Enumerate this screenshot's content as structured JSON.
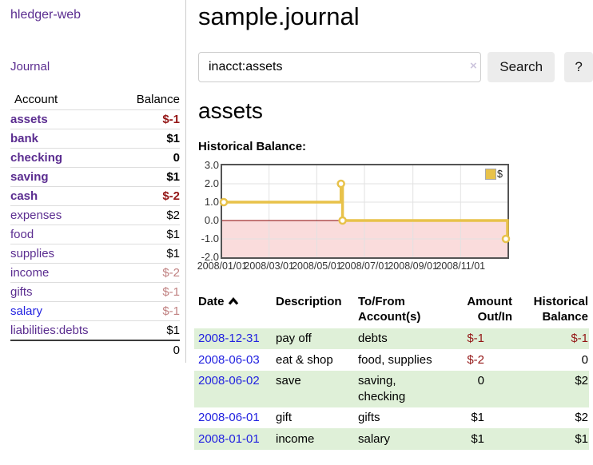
{
  "app": {
    "brand": "hledger-web",
    "nav_journal": "Journal"
  },
  "sidebar": {
    "header": {
      "account": "Account",
      "balance": "Balance"
    },
    "accounts": [
      {
        "name": "assets",
        "balance": "$-1",
        "level": 1,
        "emphasis": true,
        "visited": true
      },
      {
        "name": "bank",
        "balance": "$1",
        "level": 2,
        "emphasis": true,
        "visited": true
      },
      {
        "name": "checking",
        "balance": "0",
        "level": 3,
        "emphasis": true,
        "visited": true
      },
      {
        "name": "saving",
        "balance": "$1",
        "level": 3,
        "emphasis": true,
        "visited": true
      },
      {
        "name": "cash",
        "balance": "$-2",
        "level": 2,
        "emphasis": true,
        "visited": true
      },
      {
        "name": "expenses",
        "balance": "$2",
        "level": 1,
        "emphasis": false,
        "visited": true
      },
      {
        "name": "food",
        "balance": "$1",
        "level": 2,
        "emphasis": false,
        "visited": true
      },
      {
        "name": "supplies",
        "balance": "$1",
        "level": 2,
        "emphasis": false,
        "visited": true
      },
      {
        "name": "income",
        "balance": "$-2",
        "level": 1,
        "emphasis": false,
        "visited": true
      },
      {
        "name": "gifts",
        "balance": "$-1",
        "level": 2,
        "emphasis": false,
        "visited": true
      },
      {
        "name": "salary",
        "balance": "$-1",
        "level": 2,
        "emphasis": false,
        "visited": false
      },
      {
        "name": "liabilities:debts",
        "balance": "$1",
        "level": 1,
        "emphasis": false,
        "visited": true
      }
    ],
    "total": "0"
  },
  "main": {
    "title": "sample.journal",
    "search": {
      "value": "inacct:assets",
      "clear_icon": "×",
      "button_label": "Search",
      "help_label": "?"
    },
    "account_heading": "assets",
    "chart_label": "Historical Balance:"
  },
  "chart_data": {
    "type": "line",
    "style": "step",
    "title": "Historical Balance",
    "legend_label": "$",
    "legend_position": "top-right",
    "color": "#e8c24a",
    "ylim": [
      -2,
      3
    ],
    "yticks": [
      {
        "label": "3.0",
        "value": 3
      },
      {
        "label": "2.0",
        "value": 2
      },
      {
        "label": "1.0",
        "value": 1
      },
      {
        "label": "0.0",
        "value": 0
      },
      {
        "label": "-1.0",
        "value": -1
      },
      {
        "label": "-2.0",
        "value": -2
      }
    ],
    "xticks": [
      {
        "label": "2008/01/01",
        "day": 0
      },
      {
        "label": "2008/03/01",
        "day": 60
      },
      {
        "label": "2008/05/01",
        "day": 121
      },
      {
        "label": "2008/07/01",
        "day": 182
      },
      {
        "label": "2008/09/01",
        "day": 244
      },
      {
        "label": "2008/11/01",
        "day": 305
      }
    ],
    "x_total_days": 365,
    "points": [
      {
        "date": "2008-01-01",
        "day": 0,
        "value": 1
      },
      {
        "date": "2008-06-01",
        "day": 152,
        "value": 2
      },
      {
        "date": "2008-06-03",
        "day": 154,
        "value": 0
      },
      {
        "date": "2008-12-31",
        "day": 365,
        "value": -1
      }
    ],
    "grid": true,
    "grid_color": "#e2e2e2",
    "negative_region_color": "#fadcdc",
    "zero_line_color": "#8b0000"
  },
  "register": {
    "columns": [
      "Date",
      "Description",
      "To/From Account(s)",
      "Amount Out/In",
      "Historical Balance"
    ],
    "rows": [
      {
        "date": "2008-12-31",
        "description": "pay off",
        "accounts": "debts",
        "amount": "$-1",
        "balance": "$-1"
      },
      {
        "date": "2008-06-03",
        "description": "eat & shop",
        "accounts": "food, supplies",
        "amount": "$-2",
        "balance": "0"
      },
      {
        "date": "2008-06-02",
        "description": "save",
        "accounts": "saving, checking",
        "amount": "0",
        "balance": "$2"
      },
      {
        "date": "2008-06-01",
        "description": "gift",
        "accounts": "gifts",
        "amount": "$1",
        "balance": "$2"
      },
      {
        "date": "2008-01-01",
        "description": "income",
        "accounts": "salary",
        "amount": "$1",
        "balance": "$1"
      }
    ]
  }
}
